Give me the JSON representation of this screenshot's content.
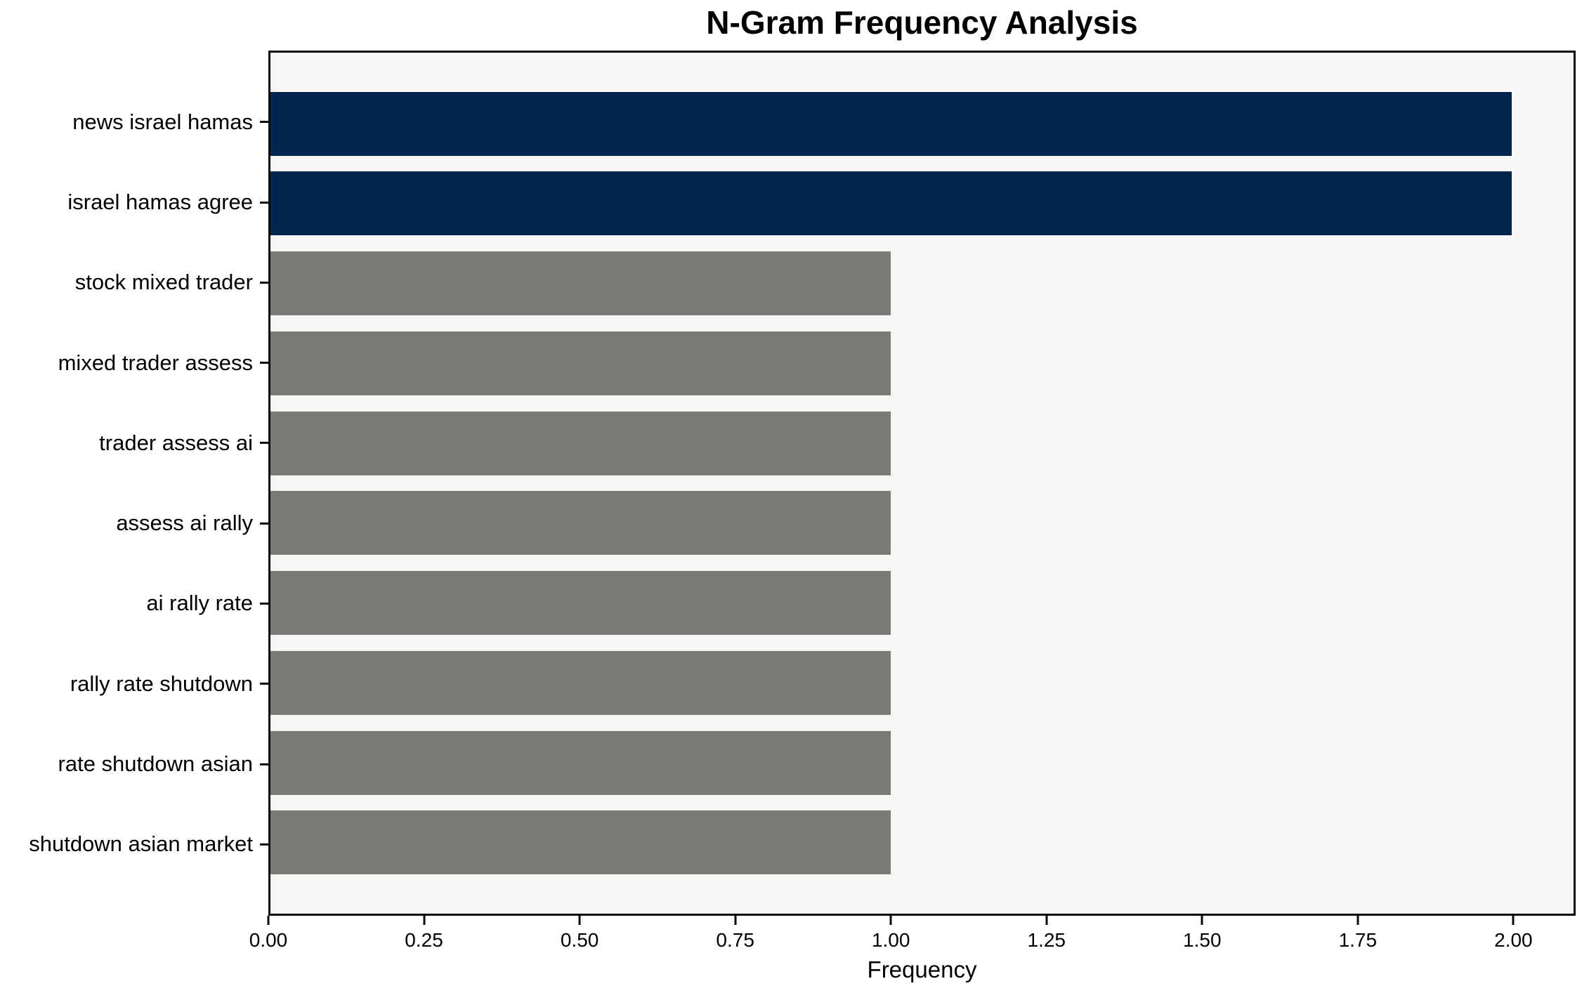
{
  "chart_data": {
    "type": "bar",
    "orientation": "horizontal",
    "title": "N-Gram Frequency Analysis",
    "xlabel": "Frequency",
    "ylabel": "",
    "categories": [
      "news israel hamas",
      "israel hamas agree",
      "stock mixed trader",
      "mixed trader assess",
      "trader assess ai",
      "assess ai rally",
      "ai rally rate",
      "rally rate shutdown",
      "rate shutdown asian",
      "shutdown asian market"
    ],
    "values": [
      2,
      2,
      1,
      1,
      1,
      1,
      1,
      1,
      1,
      1
    ],
    "bar_colors": [
      "#01254f",
      "#01254f",
      "#7b7a77",
      "#7b7a77",
      "#7b7a77",
      "#7b7a77",
      "#7b7a77",
      "#7b7a77",
      "#7b7a77",
      "#7b7a77"
    ],
    "xlim": [
      0,
      2.1
    ],
    "xticks": [
      0.0,
      0.25,
      0.5,
      0.75,
      1.0,
      1.25,
      1.5,
      1.75,
      2.0
    ],
    "xtick_labels": [
      "0.00",
      "0.25",
      "0.50",
      "0.75",
      "1.00",
      "1.25",
      "1.50",
      "1.75",
      "2.00"
    ],
    "grid": false,
    "legend": null,
    "colors": {
      "highlight_bar": "#01254f",
      "default_bar": "#7b7a77",
      "plot_background": "#f7f6f4",
      "figure_background": "#ffffff",
      "spine": "#0a0a0a",
      "text": "#000000"
    }
  }
}
